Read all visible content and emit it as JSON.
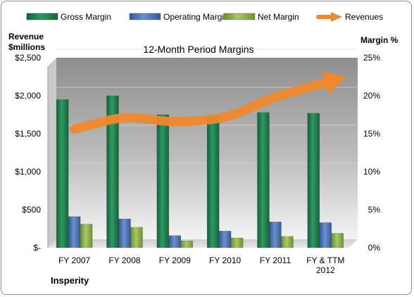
{
  "chart_data": {
    "type": "bar",
    "title": "12-Month Period Margins",
    "company": "Insperity",
    "left_axis": {
      "label_line1": "Revenue",
      "label_line2": "$millions",
      "range": [
        0,
        2500
      ],
      "ticks": [
        "$-",
        "$500",
        "$1,000",
        "$1,500",
        "$2,000",
        "$2,500"
      ]
    },
    "right_axis": {
      "label": "Margin %",
      "range": [
        0,
        25
      ],
      "ticks": [
        "0%",
        "5%",
        "10%",
        "15%",
        "20%",
        "25%"
      ]
    },
    "categories": [
      [
        "FY 2007"
      ],
      [
        "FY 2008"
      ],
      [
        "FY 2009"
      ],
      [
        "FY 2010"
      ],
      [
        "FY 2011"
      ],
      [
        "FY & TTM",
        "2012"
      ]
    ],
    "series": [
      {
        "name": "Gross Margin",
        "axis": "right",
        "kind": "bar",
        "color": "#1f7a4a",
        "values": [
          19.5,
          20.0,
          17.5,
          17.4,
          17.8,
          17.7
        ]
      },
      {
        "name": "Operating Margin",
        "axis": "right",
        "kind": "bar",
        "color": "#4a6fb0",
        "values": [
          4.1,
          3.8,
          1.6,
          2.2,
          3.4,
          3.3
        ]
      },
      {
        "name": "Net Margin",
        "axis": "right",
        "kind": "bar",
        "color": "#8aac4a",
        "values": [
          3.1,
          2.7,
          0.9,
          1.3,
          1.5,
          1.9
        ]
      },
      {
        "name": "Revenues",
        "axis": "left",
        "kind": "arrow-line",
        "color": "#f0882c",
        "values": [
          1560,
          1710,
          1660,
          1720,
          1980,
          2170
        ]
      }
    ],
    "grid": true,
    "legend_position": "top"
  }
}
